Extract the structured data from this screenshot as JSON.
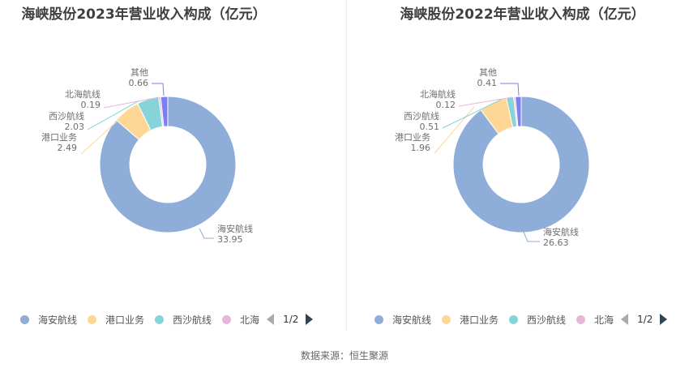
{
  "footer": {
    "source": "数据来源：恒生聚源"
  },
  "colors": {
    "海安航线": "#8eadd9",
    "港口业务": "#fed797",
    "西沙航线": "#86d4d8",
    "北海航线": "#e8b6d9",
    "其他": "#7b7ef5"
  },
  "charts": [
    {
      "title": "海峡股份2023年营业收入构成（亿元）",
      "legend": {
        "items": [
          "海安航线",
          "港口业务",
          "西沙航线",
          "北海"
        ],
        "page": "1/2"
      },
      "labels": [
        {
          "name": "海安航线",
          "value": "33.95"
        },
        {
          "name": "港口业务",
          "value": "2.49"
        },
        {
          "name": "西沙航线",
          "value": "2.03"
        },
        {
          "name": "北海航线",
          "value": "0.19"
        },
        {
          "name": "其他",
          "value": "0.66"
        }
      ]
    },
    {
      "title": "海峡股份2022年营业收入构成（亿元）",
      "legend": {
        "items": [
          "海安航线",
          "港口业务",
          "西沙航线",
          "北海"
        ],
        "page": "1/2"
      },
      "labels": [
        {
          "name": "海安航线",
          "value": "26.63"
        },
        {
          "name": "港口业务",
          "value": "1.96"
        },
        {
          "name": "西沙航线",
          "value": "0.51"
        },
        {
          "name": "北海航线",
          "value": "0.12"
        },
        {
          "name": "其他",
          "value": "0.41"
        }
      ]
    }
  ],
  "chart_data": [
    {
      "type": "pie",
      "title": "海峡股份2023年营业收入构成（亿元）",
      "categories": [
        "海安航线",
        "港口业务",
        "西沙航线",
        "北海航线",
        "其他"
      ],
      "values": [
        33.95,
        2.49,
        2.03,
        0.19,
        0.66
      ],
      "unit": "亿元",
      "donut": true,
      "legend_position": "bottom"
    },
    {
      "type": "pie",
      "title": "海峡股份2022年营业收入构成（亿元）",
      "categories": [
        "海安航线",
        "港口业务",
        "西沙航线",
        "北海航线",
        "其他"
      ],
      "values": [
        26.63,
        1.96,
        0.51,
        0.12,
        0.41
      ],
      "unit": "亿元",
      "donut": true,
      "legend_position": "bottom"
    }
  ]
}
